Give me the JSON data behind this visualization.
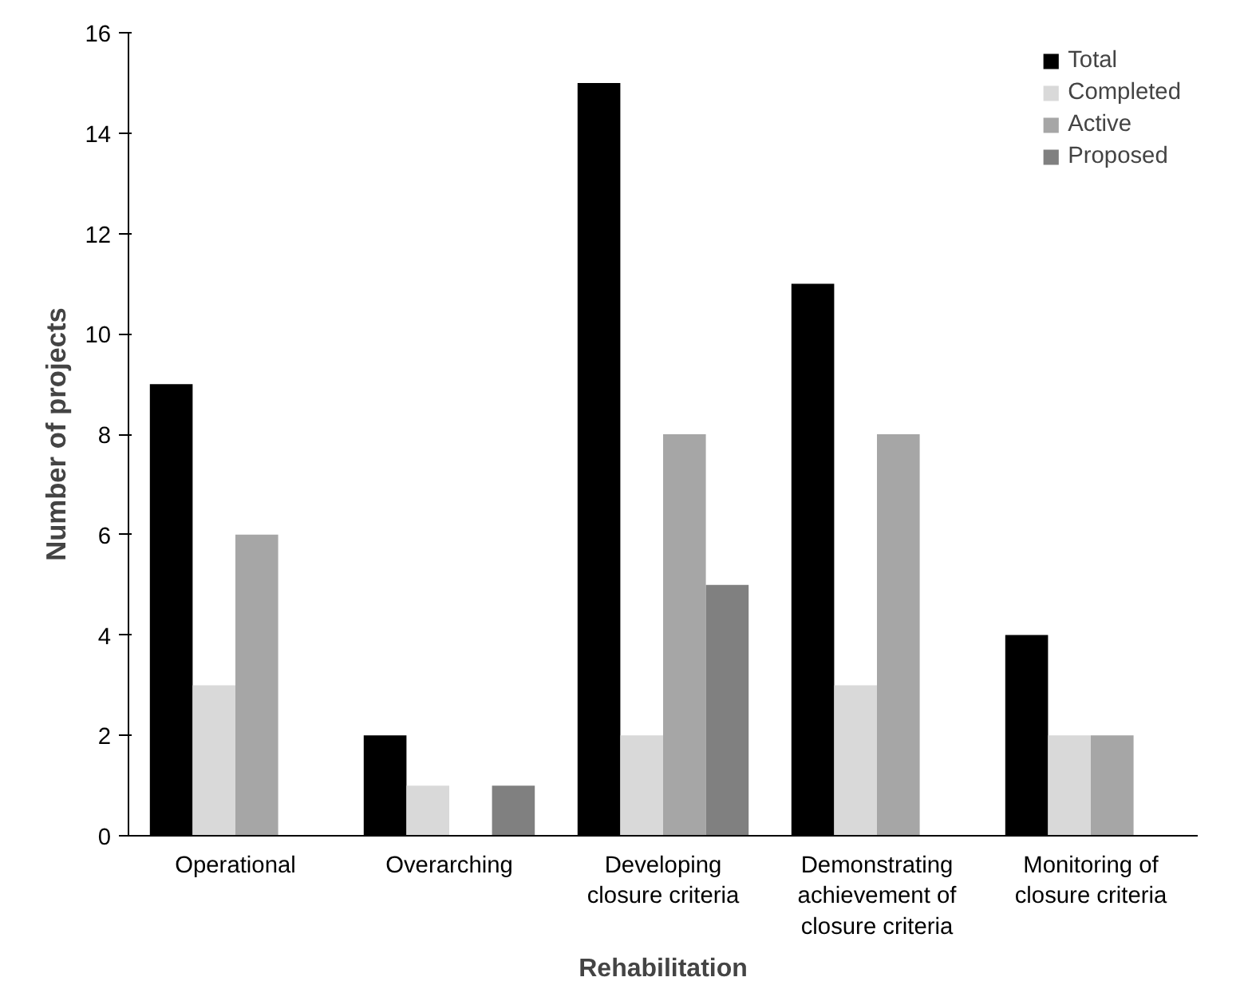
{
  "chart_data": {
    "type": "bar",
    "ylabel": "Number of projects",
    "categories": [
      "Operational",
      "Overarching",
      "Developing\nclosure criteria",
      "Demonstrating\nachievement of\nclosure criteria",
      "Monitoring of\nclosure criteria"
    ],
    "series": [
      {
        "name": "Total",
        "color": "#000000",
        "values": [
          9,
          2,
          15,
          11,
          4
        ]
      },
      {
        "name": "Completed",
        "color": "#d9d9d9",
        "values": [
          3,
          1,
          2,
          3,
          2
        ]
      },
      {
        "name": "Active",
        "color": "#a6a6a6",
        "values": [
          6,
          0,
          8,
          8,
          2
        ]
      },
      {
        "name": "Proposed",
        "color": "#808080",
        "values": [
          0,
          1,
          5,
          0,
          0
        ]
      }
    ],
    "ylim": [
      0,
      16
    ],
    "yticks": [
      0,
      2,
      4,
      6,
      8,
      10,
      12,
      14,
      16
    ],
    "grid": false,
    "legend": "top right",
    "annotations": [
      "Rehabilitation"
    ]
  }
}
